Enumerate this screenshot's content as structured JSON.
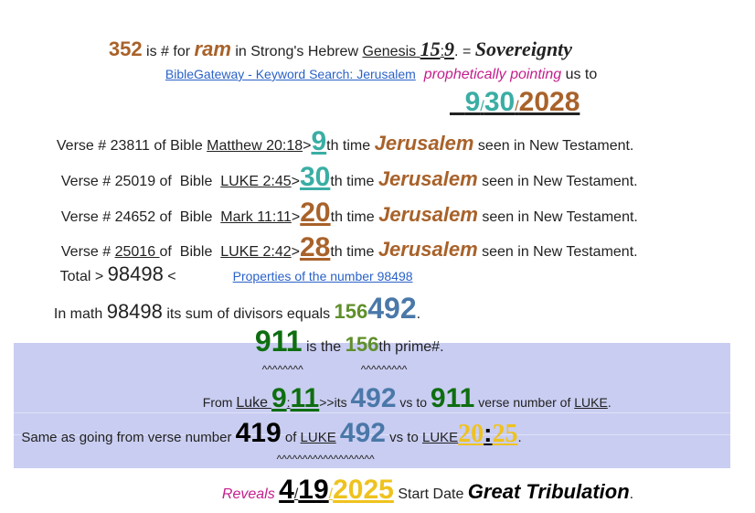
{
  "lines": [
    [
      "352",
      " is # for ",
      "ram",
      " in Strong's Hebrew ",
      "Genesis",
      " ",
      "15",
      ":",
      "9",
      ". = ",
      "Sovereignty"
    ],
    [
      "BibleGateway - Keyword Search: Jerusalem",
      "prophetically pointing",
      " us to"
    ],
    [
      "9",
      "/",
      "30",
      "/",
      "2028"
    ],
    [
      "Verse # 23811 of Bible ",
      "Matthew 20:18",
      ">",
      "9",
      "th time ",
      "Jerusalem",
      " seen in New Testament."
    ],
    [
      "Verse # 25019 of  Bible  ",
      "LUKE 2:45",
      ">",
      "30",
      "th time ",
      "Jerusalem",
      " seen in New Testament."
    ],
    [
      "Verse # 24652 of  Bible  ",
      "Mark 11:11",
      ">",
      "20",
      "th time ",
      "Jerusalem",
      " seen in New Testament."
    ],
    [
      "Verse # ",
      "25016 ",
      "of  Bible  ",
      "LUKE 2:42",
      ">",
      "28",
      "th time ",
      "Jerusalem",
      " seen in New Testament."
    ],
    [
      "Total > ",
      "98498",
      " <",
      "Properties of the number 98498"
    ],
    [
      "In math ",
      "98498",
      " its sum of divisors equals ",
      "156",
      "492",
      "."
    ],
    [
      "911",
      " is the ",
      "156",
      "th prime#."
    ],
    [
      "^^^^^^^^",
      "^^^^^^^^^"
    ],
    [
      "From ",
      "Luke",
      " ",
      "9",
      ":",
      "11",
      ">>its ",
      "492",
      " vs to ",
      "911",
      " verse number of ",
      "LUKE",
      "."
    ],
    [
      "Same as going from verse number ",
      "419",
      " of ",
      "LUKE",
      " ",
      "492",
      " vs to ",
      "LUKE",
      "20",
      ":",
      "25",
      "."
    ],
    [
      "^^^^^^^^^^^^^^^^^^^"
    ],
    [
      "Reveals",
      " ",
      "4",
      "/",
      "19",
      "/",
      "2025",
      " Start Date ",
      "Great Tribulation",
      "."
    ]
  ]
}
